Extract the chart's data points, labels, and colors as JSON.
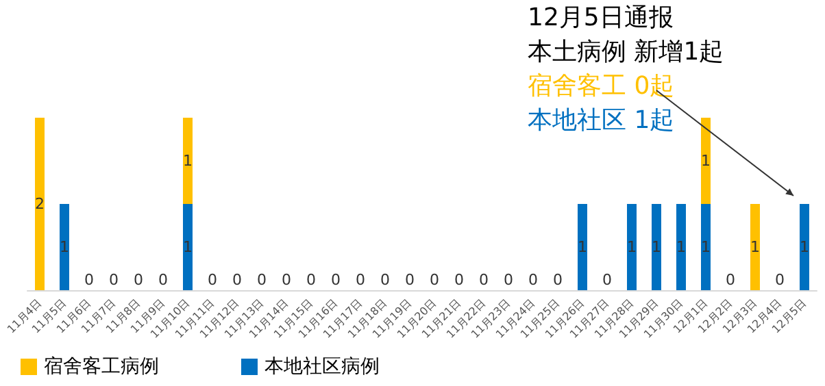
{
  "chart_data": {
    "type": "bar",
    "stacked": true,
    "legend": "bottom left",
    "categories": [
      "11月4日",
      "11月5日",
      "11月6日",
      "11月7日",
      "11月8日",
      "11月9日",
      "11月10日",
      "11月11日",
      "11月12日",
      "11月13日",
      "11月14日",
      "11月15日",
      "11月16日",
      "11月17日",
      "11月18日",
      "11月19日",
      "11月20日",
      "11月21日",
      "11月22日",
      "11月23日",
      "11月24日",
      "11月25日",
      "11月26日",
      "11月27日",
      "11月28日",
      "11月29日",
      "11月30日",
      "12月1日",
      "12月2日",
      "12月3日",
      "12月4日",
      "12月5日"
    ],
    "series": [
      {
        "name": "本地社区病例",
        "color": "#0070c0",
        "values": [
          0,
          1,
          0,
          0,
          0,
          0,
          1,
          0,
          0,
          0,
          0,
          0,
          0,
          0,
          0,
          0,
          0,
          0,
          0,
          0,
          0,
          0,
          1,
          0,
          1,
          1,
          1,
          1,
          0,
          0,
          0,
          1
        ],
        "value_labels": [
          null,
          "1",
          "0",
          "0",
          "0",
          "0",
          "1",
          "0",
          "0",
          "0",
          "0",
          "0",
          "0",
          "0",
          "0",
          "0",
          "0",
          "0",
          "0",
          "0",
          "0",
          "0",
          "1",
          "0",
          "1",
          "1",
          "1",
          "1",
          "0",
          null,
          "0",
          "1"
        ]
      },
      {
        "name": "宿舍客工病例",
        "color": "#ffc000",
        "values": [
          2,
          0,
          0,
          0,
          0,
          0,
          1,
          0,
          0,
          0,
          0,
          0,
          0,
          0,
          0,
          0,
          0,
          0,
          0,
          0,
          0,
          0,
          0,
          0,
          0,
          0,
          0,
          1,
          0,
          1,
          0,
          0
        ],
        "value_labels": [
          "2",
          null,
          null,
          null,
          null,
          null,
          "1",
          null,
          null,
          null,
          null,
          null,
          null,
          null,
          null,
          null,
          null,
          null,
          null,
          null,
          null,
          null,
          null,
          null,
          null,
          null,
          null,
          "1",
          null,
          "1",
          null,
          null
        ]
      }
    ],
    "annotations": [
      "12月5日通报",
      "本土病例 新增1起",
      "宿舍客工 0起",
      "本地社区 1起"
    ]
  }
}
